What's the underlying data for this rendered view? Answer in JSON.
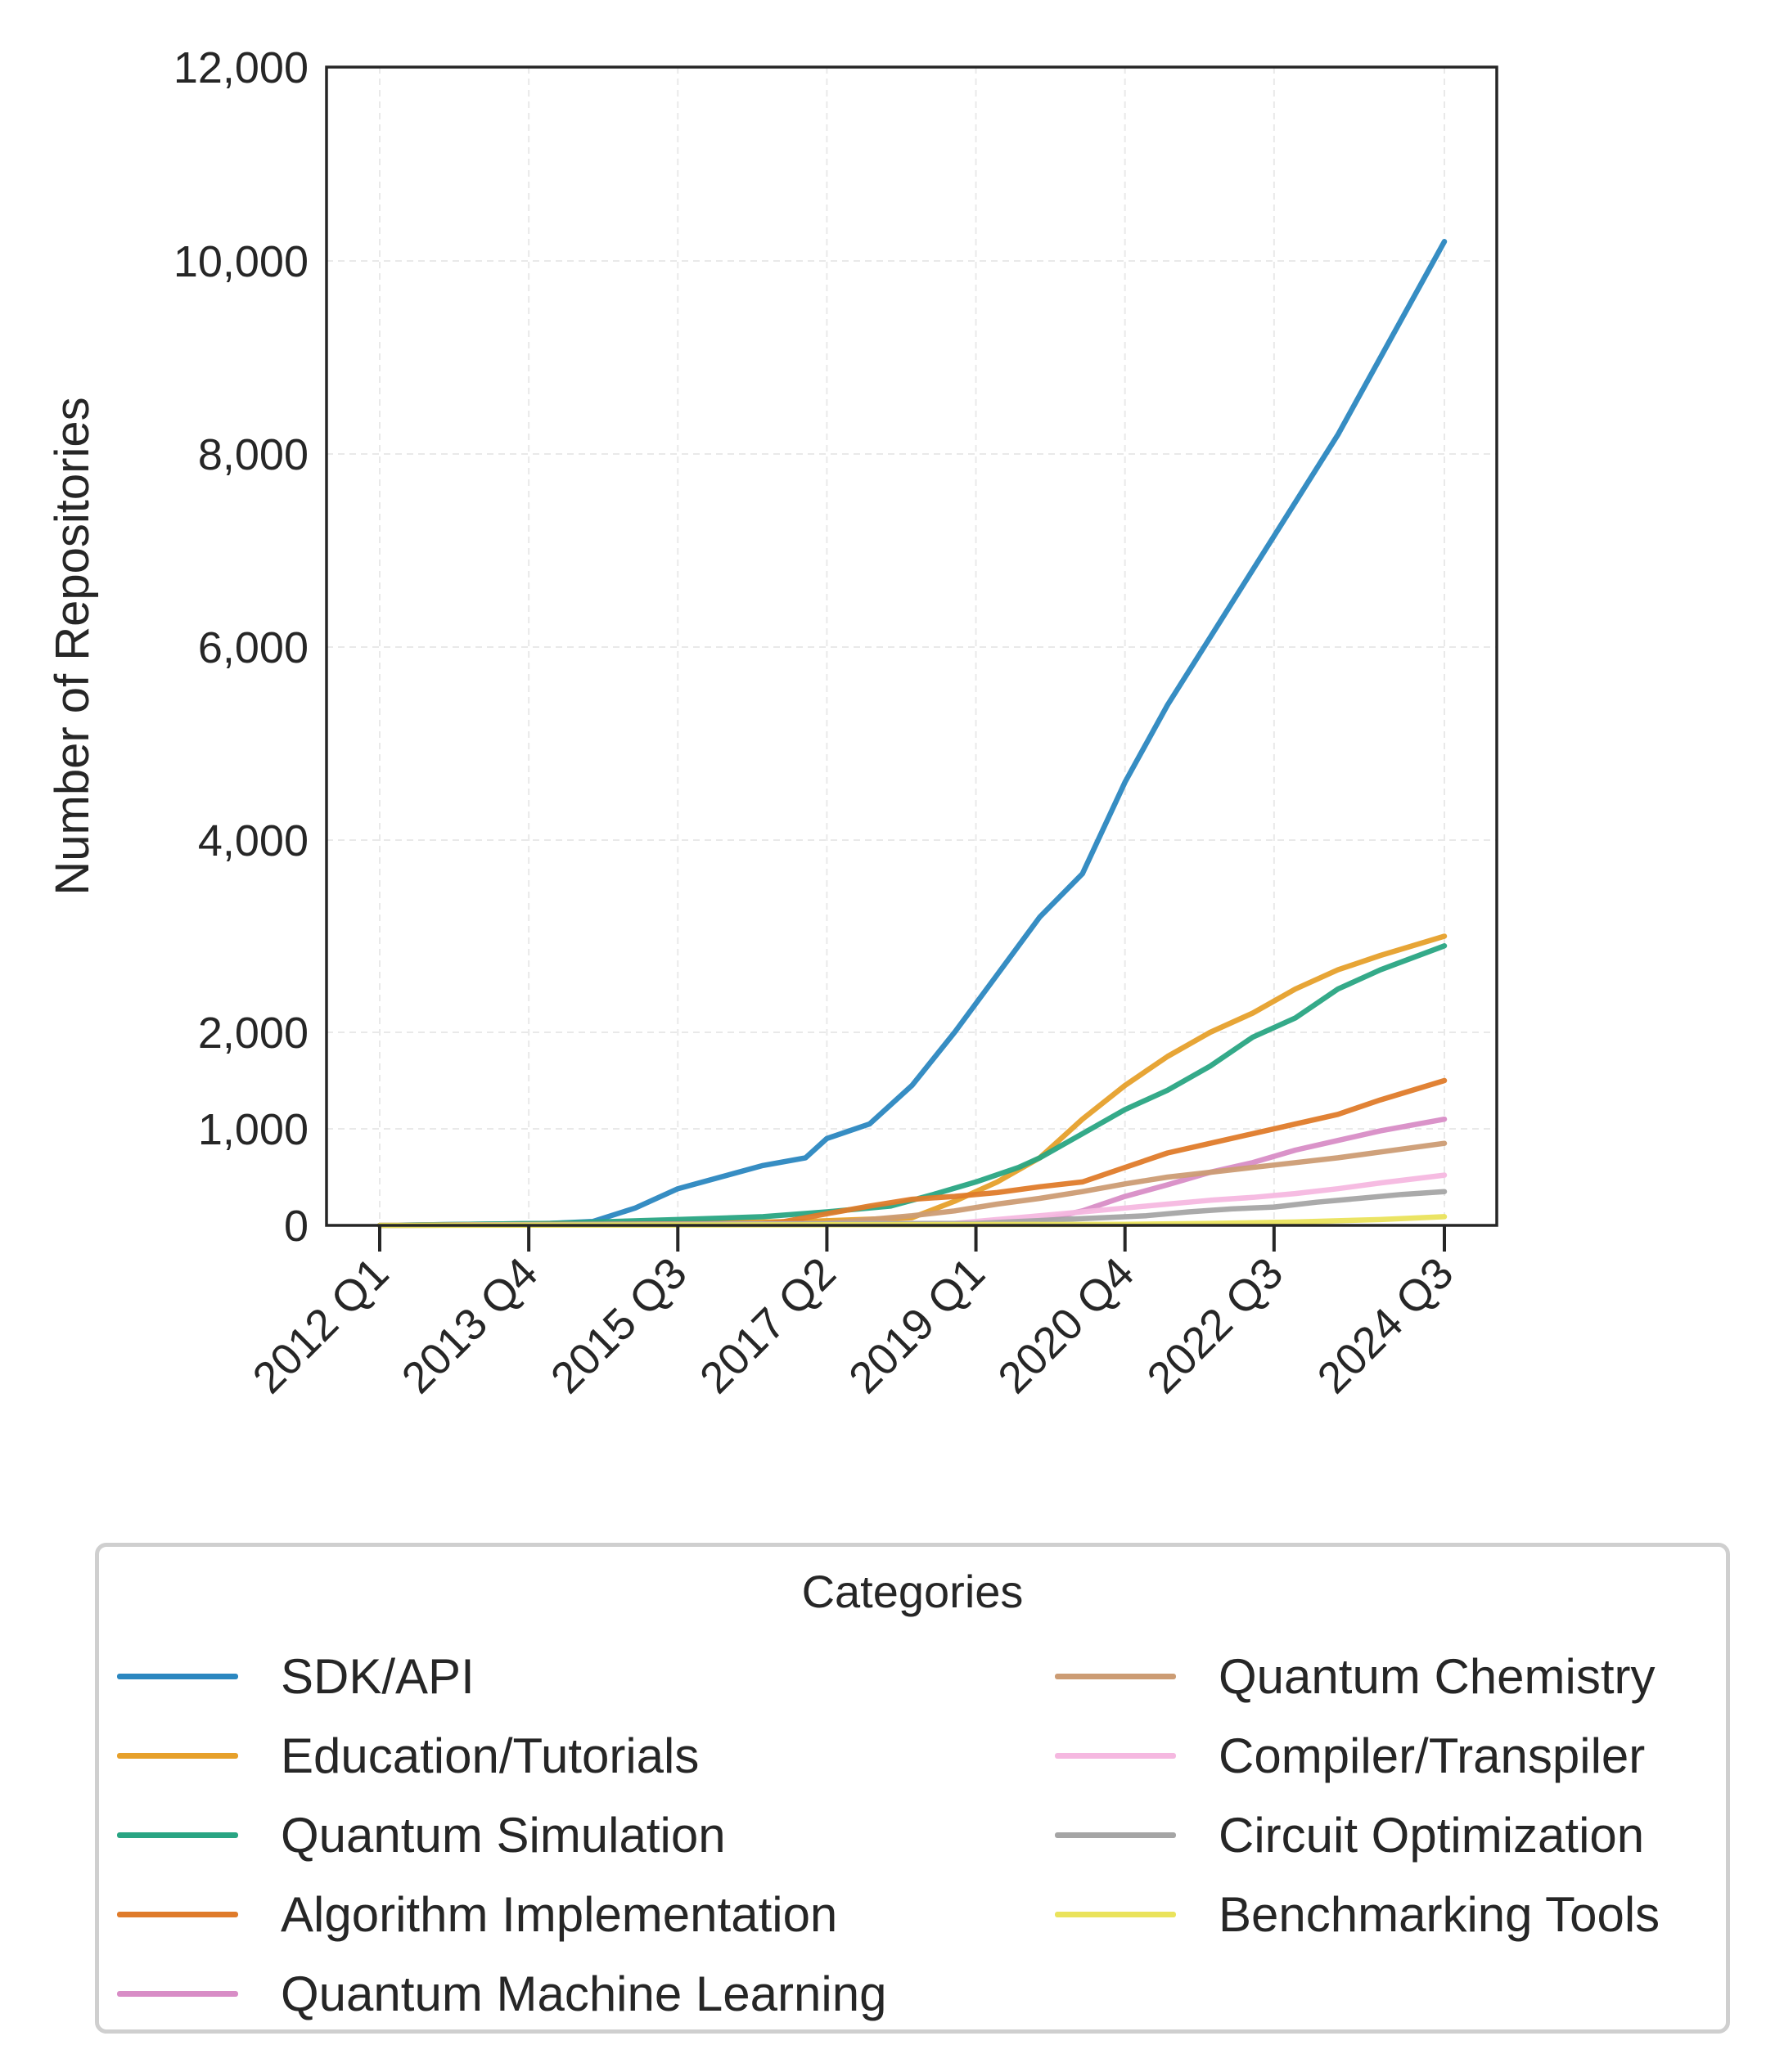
{
  "chart_data": {
    "type": "line",
    "title": "",
    "xlabel": "",
    "ylabel": "Number of Repositories",
    "ylim": [
      0,
      12000
    ],
    "yticks": [
      0,
      1000,
      2000,
      4000,
      6000,
      8000,
      10000,
      12000
    ],
    "ytick_labels": [
      "0",
      "1,000",
      "2,000",
      "4,000",
      "6,000",
      "8,000",
      "10,000",
      "12,000"
    ],
    "x_range": [
      "2011 Q3",
      "2025 Q2"
    ],
    "xticks": [
      "2012 Q1",
      "2013 Q4",
      "2015 Q3",
      "2017 Q2",
      "2019 Q1",
      "2020 Q4",
      "2022 Q3",
      "2024 Q3"
    ],
    "grid": true,
    "legend": {
      "title": "Categories",
      "placement": "below",
      "columns": 2
    },
    "series": [
      {
        "name": "SDK/API",
        "color": "#2b87c0",
        "points": [
          [
            "2012 Q1",
            0
          ],
          [
            "2014 Q1",
            20
          ],
          [
            "2014 Q3",
            40
          ],
          [
            "2015 Q1",
            180
          ],
          [
            "2015 Q3",
            380
          ],
          [
            "2016 Q1",
            500
          ],
          [
            "2016 Q3",
            620
          ],
          [
            "2017 Q1",
            700
          ],
          [
            "2017 Q2",
            900
          ],
          [
            "2017 Q4",
            1050
          ],
          [
            "2018 Q2",
            1450
          ],
          [
            "2018 Q4",
            2000
          ],
          [
            "2019 Q2",
            2600
          ],
          [
            "2019 Q4",
            3200
          ],
          [
            "2020 Q2",
            3650
          ],
          [
            "2020 Q4",
            4600
          ],
          [
            "2021 Q2",
            5400
          ],
          [
            "2021 Q4",
            6100
          ],
          [
            "2022 Q2",
            6800
          ],
          [
            "2022 Q4",
            7500
          ],
          [
            "2023 Q2",
            8200
          ],
          [
            "2023 Q4",
            9000
          ],
          [
            "2024 Q3",
            10200
          ]
        ]
      },
      {
        "name": "Education/Tutorials",
        "color": "#e6a02b",
        "points": [
          [
            "2012 Q1",
            0
          ],
          [
            "2015 Q1",
            20
          ],
          [
            "2017 Q1",
            40
          ],
          [
            "2018 Q2",
            80
          ],
          [
            "2018 Q4",
            250
          ],
          [
            "2019 Q2",
            450
          ],
          [
            "2019 Q4",
            700
          ],
          [
            "2020 Q2",
            1100
          ],
          [
            "2020 Q4",
            1450
          ],
          [
            "2021 Q2",
            1750
          ],
          [
            "2021 Q4",
            2000
          ],
          [
            "2022 Q2",
            2200
          ],
          [
            "2022 Q4",
            2450
          ],
          [
            "2023 Q2",
            2650
          ],
          [
            "2023 Q4",
            2800
          ],
          [
            "2024 Q3",
            3000
          ]
        ]
      },
      {
        "name": "Quantum Simulation",
        "color": "#29a583",
        "points": [
          [
            "2012 Q1",
            0
          ],
          [
            "2014 Q1",
            20
          ],
          [
            "2015 Q3",
            60
          ],
          [
            "2016 Q3",
            90
          ],
          [
            "2017 Q2",
            140
          ],
          [
            "2018 Q1",
            200
          ],
          [
            "2018 Q3",
            320
          ],
          [
            "2019 Q1",
            450
          ],
          [
            "2019 Q3",
            600
          ],
          [
            "2019 Q4",
            700
          ],
          [
            "2020 Q2",
            950
          ],
          [
            "2020 Q4",
            1200
          ],
          [
            "2021 Q2",
            1400
          ],
          [
            "2021 Q4",
            1650
          ],
          [
            "2022 Q2",
            1950
          ],
          [
            "2022 Q4",
            2150
          ],
          [
            "2023 Q2",
            2450
          ],
          [
            "2023 Q4",
            2650
          ],
          [
            "2024 Q3",
            2900
          ]
        ]
      },
      {
        "name": "Algorithm Implementation",
        "color": "#df7b2a",
        "points": [
          [
            "2012 Q1",
            0
          ],
          [
            "2016 Q3",
            20
          ],
          [
            "2016 Q4",
            40
          ],
          [
            "2017 Q2",
            120
          ],
          [
            "2017 Q4",
            200
          ],
          [
            "2018 Q2",
            270
          ],
          [
            "2018 Q4",
            300
          ],
          [
            "2019 Q2",
            340
          ],
          [
            "2019 Q4",
            400
          ],
          [
            "2020 Q2",
            450
          ],
          [
            "2020 Q4",
            600
          ],
          [
            "2021 Q2",
            750
          ],
          [
            "2021 Q4",
            850
          ],
          [
            "2022 Q2",
            950
          ],
          [
            "2022 Q4",
            1050
          ],
          [
            "2023 Q2",
            1150
          ],
          [
            "2023 Q4",
            1300
          ],
          [
            "2024 Q3",
            1500
          ]
        ]
      },
      {
        "name": "Quantum Machine Learning",
        "color": "#d88dc6",
        "points": [
          [
            "2012 Q1",
            0
          ],
          [
            "2019 Q2",
            20
          ],
          [
            "2019 Q4",
            50
          ],
          [
            "2020 Q2",
            150
          ],
          [
            "2020 Q4",
            300
          ],
          [
            "2021 Q2",
            420
          ],
          [
            "2021 Q4",
            550
          ],
          [
            "2022 Q2",
            650
          ],
          [
            "2022 Q4",
            780
          ],
          [
            "2023 Q2",
            880
          ],
          [
            "2023 Q4",
            980
          ],
          [
            "2024 Q3",
            1100
          ]
        ]
      },
      {
        "name": "Quantum Chemistry",
        "color": "#cc9c74",
        "points": [
          [
            "2012 Q1",
            0
          ],
          [
            "2017 Q2",
            20
          ],
          [
            "2017 Q4",
            60
          ],
          [
            "2018 Q2",
            100
          ],
          [
            "2018 Q4",
            150
          ],
          [
            "2019 Q2",
            220
          ],
          [
            "2019 Q4",
            280
          ],
          [
            "2020 Q2",
            350
          ],
          [
            "2020 Q4",
            430
          ],
          [
            "2021 Q2",
            500
          ],
          [
            "2021 Q4",
            550
          ],
          [
            "2022 Q2",
            600
          ],
          [
            "2022 Q4",
            650
          ],
          [
            "2023 Q2",
            700
          ],
          [
            "2023 Q4",
            760
          ],
          [
            "2024 Q3",
            850
          ]
        ]
      },
      {
        "name": "Compiler/Transpiler",
        "color": "#f5b8e0",
        "points": [
          [
            "2012 Q1",
            0
          ],
          [
            "2018 Q4",
            20
          ],
          [
            "2019 Q2",
            60
          ],
          [
            "2019 Q4",
            100
          ],
          [
            "2020 Q2",
            140
          ],
          [
            "2020 Q4",
            180
          ],
          [
            "2021 Q2",
            220
          ],
          [
            "2021 Q4",
            260
          ],
          [
            "2022 Q2",
            290
          ],
          [
            "2022 Q4",
            330
          ],
          [
            "2023 Q2",
            380
          ],
          [
            "2023 Q4",
            440
          ],
          [
            "2024 Q3",
            520
          ]
        ]
      },
      {
        "name": "Circuit Optimization",
        "color": "#a5a5a5",
        "points": [
          [
            "2012 Q1",
            0
          ],
          [
            "2019 Q1",
            20
          ],
          [
            "2019 Q3",
            40
          ],
          [
            "2020 Q1",
            60
          ],
          [
            "2020 Q3",
            80
          ],
          [
            "2021 Q1",
            100
          ],
          [
            "2021 Q3",
            140
          ],
          [
            "2022 Q1",
            170
          ],
          [
            "2022 Q3",
            190
          ],
          [
            "2023 Q1",
            240
          ],
          [
            "2023 Q3",
            280
          ],
          [
            "2024 Q1",
            320
          ],
          [
            "2024 Q3",
            350
          ]
        ]
      },
      {
        "name": "Benchmarking Tools",
        "color": "#eae35c",
        "points": [
          [
            "2012 Q1",
            0
          ],
          [
            "2020 Q4",
            10
          ],
          [
            "2021 Q4",
            20
          ],
          [
            "2022 Q4",
            35
          ],
          [
            "2023 Q4",
            60
          ],
          [
            "2024 Q3",
            90
          ]
        ]
      }
    ]
  }
}
